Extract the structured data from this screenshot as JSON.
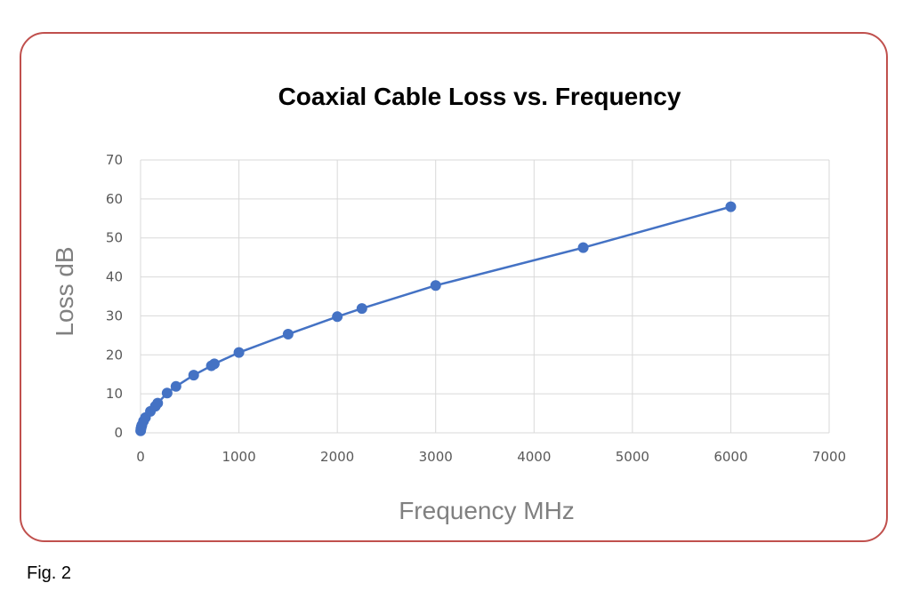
{
  "figure": {
    "caption": "Fig. 2"
  },
  "chart_data": {
    "type": "scatter",
    "title": "Coaxial Cable Loss vs. Frequency",
    "xlabel": "Frequency MHz",
    "ylabel": "Loss dB",
    "xlim": [
      0,
      7000
    ],
    "ylim": [
      0,
      70
    ],
    "xticks": [
      0,
      1000,
      2000,
      3000,
      4000,
      5000,
      6000,
      7000
    ],
    "yticks": [
      0,
      10,
      20,
      30,
      40,
      50,
      60,
      70
    ],
    "grid": true,
    "legend": "none",
    "colors": {
      "series": "#4472c4",
      "grid": "#d9d9d9",
      "frame": "#c0504d"
    },
    "series": [
      {
        "marker": "circle",
        "line": true,
        "x": [
          1,
          3.5,
          7,
          10,
          14,
          30,
          50,
          100,
          150,
          174,
          270,
          360,
          540,
          720,
          750,
          1000,
          1500,
          2000,
          2250,
          3000,
          4500,
          6000
        ],
        "y": [
          0.5,
          1.0,
          1.4,
          1.7,
          2.0,
          3.0,
          3.9,
          5.5,
          6.8,
          7.6,
          10.2,
          11.9,
          14.8,
          17.2,
          17.7,
          20.6,
          25.3,
          29.8,
          31.9,
          37.8,
          47.5,
          58.0
        ]
      }
    ]
  }
}
